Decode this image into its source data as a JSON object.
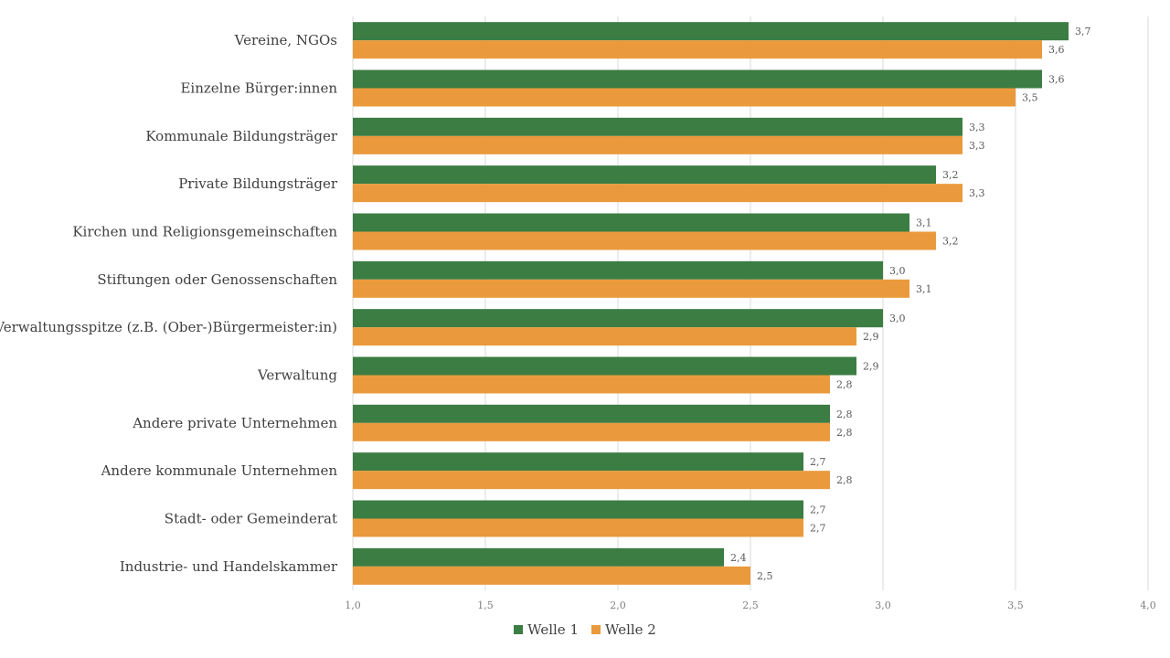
{
  "chart_data": {
    "type": "bar",
    "orientation": "horizontal",
    "categories": [
      "Vereine, NGOs",
      "Einzelne Bürger:innen",
      "Kommunale Bildungsträger",
      "Private Bildungsträger",
      "Kirchen und Religionsgemeinschaften",
      "Stiftungen oder Genossenschaften",
      "Verwaltungsspitze (z.B. (Ober-)Bürgermeister:in)",
      "Verwaltung",
      "Andere private Unternehmen",
      "Andere kommunale Unternehmen",
      "Stadt- oder Gemeinderat",
      "Industrie- und Handelskammer"
    ],
    "series": [
      {
        "name": "Welle 1",
        "color": "#3b7d43",
        "values": [
          3.7,
          3.6,
          3.3,
          3.2,
          3.1,
          3.0,
          3.0,
          2.9,
          2.8,
          2.7,
          2.7,
          2.4
        ],
        "labels": [
          "3,7",
          "3,6",
          "3,3",
          "3,2",
          "3,1",
          "3,0",
          "3,0",
          "2,9",
          "2,8",
          "2,7",
          "2,7",
          "2,4"
        ]
      },
      {
        "name": "Welle 2",
        "color": "#ea9a3c",
        "values": [
          3.6,
          3.5,
          3.3,
          3.3,
          3.2,
          3.1,
          2.9,
          2.8,
          2.8,
          2.8,
          2.7,
          2.5
        ],
        "labels": [
          "3,6",
          "3,5",
          "3,3",
          "3,3",
          "3,2",
          "3,1",
          "2,9",
          "2,8",
          "2,8",
          "2,8",
          "2,7",
          "2,5"
        ]
      }
    ],
    "xlim": [
      1.0,
      4.0
    ],
    "xticks": [
      1.0,
      1.5,
      2.0,
      2.5,
      3.0,
      3.5,
      4.0
    ],
    "xtick_labels": [
      "1,0",
      "1,5",
      "2,0",
      "2,5",
      "3,0",
      "3,5",
      "4,0"
    ],
    "title": "",
    "xlabel": "",
    "ylabel": "",
    "grid": true,
    "legend_position": "bottom"
  }
}
